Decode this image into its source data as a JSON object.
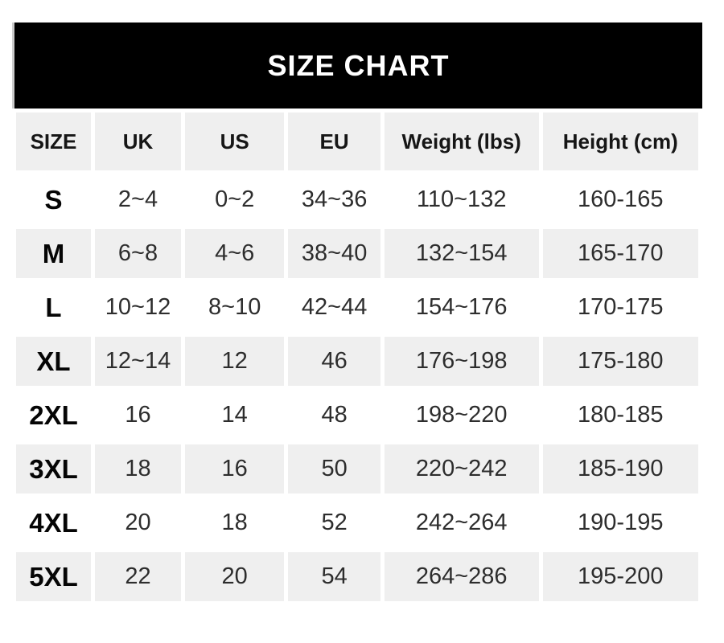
{
  "title": "SIZE CHART",
  "colors": {
    "banner_bg": "#000000",
    "banner_text": "#ffffff",
    "row_alt_bg": "#efefef",
    "page_bg": "#ffffff",
    "header_text": "#161616",
    "cell_text": "#2d2d2d",
    "size_label_text": "#050505"
  },
  "chart_data": {
    "type": "table",
    "title": "SIZE CHART",
    "columns": [
      "SIZE",
      "UK",
      "US",
      "EU",
      "Weight (lbs)",
      "Height (cm)"
    ],
    "rows": [
      [
        "S",
        "2~4",
        "0~2",
        "34~36",
        "110~132",
        "160-165"
      ],
      [
        "M",
        "6~8",
        "4~6",
        "38~40",
        "132~154",
        "165-170"
      ],
      [
        "L",
        "10~12",
        "8~10",
        "42~44",
        "154~176",
        "170-175"
      ],
      [
        "XL",
        "12~14",
        "12",
        "46",
        "176~198",
        "175-180"
      ],
      [
        "2XL",
        "16",
        "14",
        "48",
        "198~220",
        "180-185"
      ],
      [
        "3XL",
        "18",
        "16",
        "50",
        "220~242",
        "185-190"
      ],
      [
        "4XL",
        "20",
        "18",
        "52",
        "242~264",
        "190-195"
      ],
      [
        "5XL",
        "22",
        "20",
        "54",
        "264~286",
        "195-200"
      ]
    ],
    "layout": {
      "legend": "none",
      "grid": "off",
      "row_striping": "alternate",
      "range_separator_body": "~",
      "range_separator_height": "-"
    }
  }
}
